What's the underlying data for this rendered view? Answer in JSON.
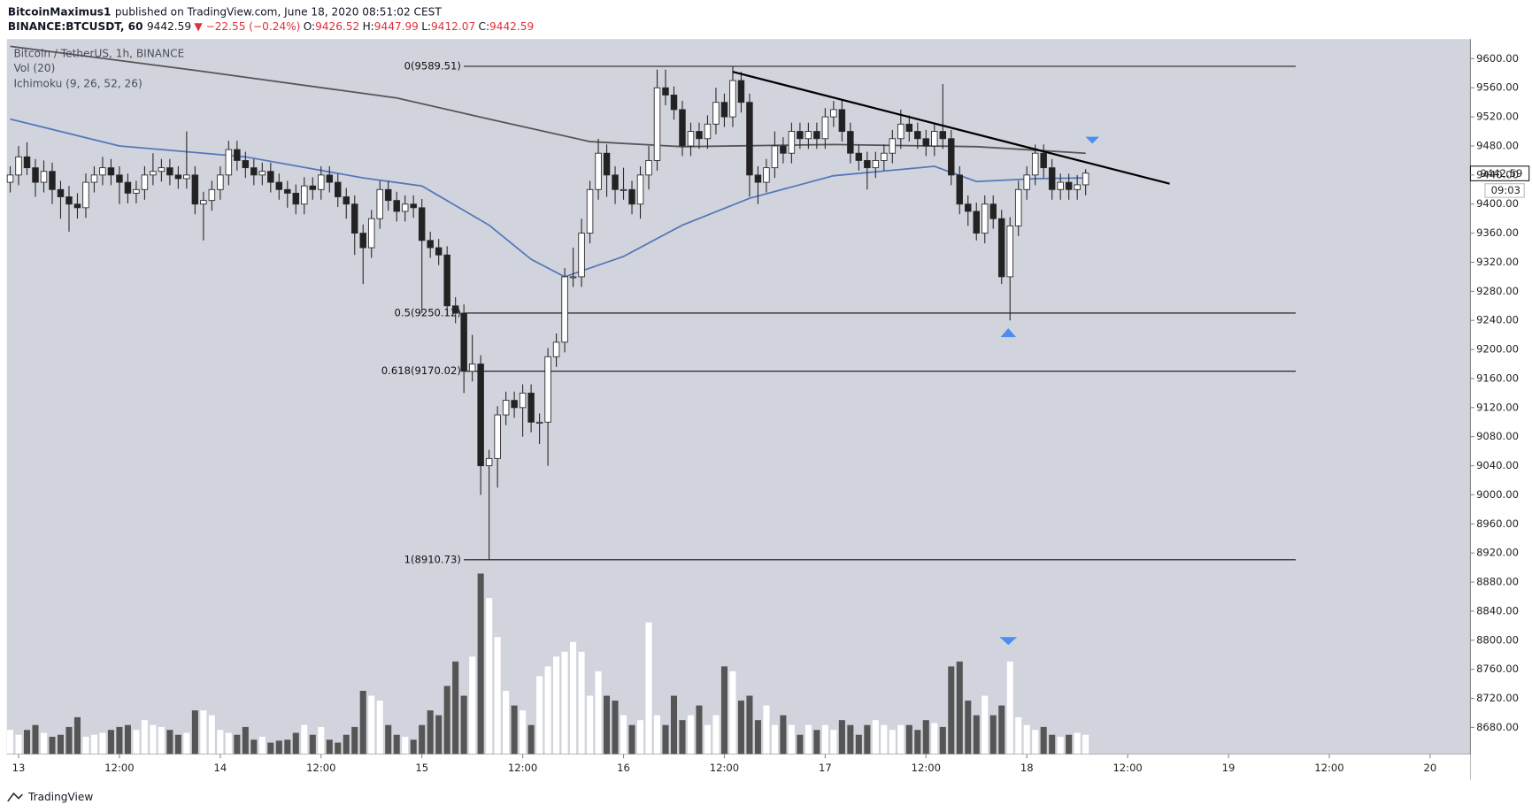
{
  "header": {
    "author": "BitcoinMaximus1",
    "published": "published on TradingView.com, June 18, 2020 08:51:02 CEST",
    "symbol": "BINANCE:BTCUSDT, 60",
    "change": "▼ −22.55 (−0.24%)",
    "o": "O:",
    "h": "H:",
    "l": "L:",
    "c": "C:"
  },
  "footer": "TradingView",
  "chart_data": {
    "type": "candlestick",
    "title": "Bitcoin / TetherUS, 1h, BINANCE",
    "indicators": [
      "Vol (20)",
      "Ichimoku (9, 26, 52, 26)"
    ],
    "countdown": "09:03",
    "background": "#d1d4dd",
    "up_color": "#ffffff",
    "down_color": "#222222",
    "wick_color": "#2a2a2a",
    "volume_up_color": "#ffffff",
    "volume_down_color": "#555555",
    "grid": false,
    "xlim": [
      -0.4,
      173.8
    ],
    "xticks": [
      {
        "value": 1,
        "label": "13"
      },
      {
        "value": 13,
        "label": "12:00"
      },
      {
        "value": 25,
        "label": "14"
      },
      {
        "value": 37,
        "label": "12:00"
      },
      {
        "value": 49,
        "label": "15"
      },
      {
        "value": 61,
        "label": "12:00"
      },
      {
        "value": 73,
        "label": "16"
      },
      {
        "value": 85,
        "label": "12:00"
      },
      {
        "value": 97,
        "label": "17"
      },
      {
        "value": 109,
        "label": "12:00"
      },
      {
        "value": 121,
        "label": "18"
      },
      {
        "value": 133,
        "label": "12:00"
      },
      {
        "value": 145,
        "label": "19"
      },
      {
        "value": 157,
        "label": "12:00"
      },
      {
        "value": 169,
        "label": "20"
      }
    ],
    "ylim": [
      8643,
      9627
    ],
    "yticks": [
      {
        "value": 8680,
        "label": "8680.00"
      },
      {
        "value": 8720,
        "label": "8720.00"
      },
      {
        "value": 8760,
        "label": "8760.00"
      },
      {
        "value": 8800,
        "label": "8800.00"
      },
      {
        "value": 8840,
        "label": "8840.00"
      },
      {
        "value": 8880,
        "label": "8880.00"
      },
      {
        "value": 8920,
        "label": "8920.00"
      },
      {
        "value": 8960,
        "label": "8960.00"
      },
      {
        "value": 9000,
        "label": "9000.00"
      },
      {
        "value": 9040,
        "label": "9040.00"
      },
      {
        "value": 9080,
        "label": "9080.00"
      },
      {
        "value": 9120,
        "label": "9120.00"
      },
      {
        "value": 9160,
        "label": "9160.00"
      },
      {
        "value": 9200,
        "label": "9200.00"
      },
      {
        "value": 9240,
        "label": "9240.00"
      },
      {
        "value": 9280,
        "label": "9280.00"
      },
      {
        "value": 9320,
        "label": "9320.00"
      },
      {
        "value": 9360,
        "label": "9360.00"
      },
      {
        "value": 9400,
        "label": "9400.00"
      },
      {
        "value": 9440,
        "label": "9440.00"
      },
      {
        "value": 9480,
        "label": "9480.00"
      },
      {
        "value": 9520,
        "label": "9520.00"
      },
      {
        "value": 9560,
        "label": "9560.00"
      },
      {
        "value": 9600,
        "label": "9600.00"
      }
    ],
    "open": [
      9430,
      9440,
      9465,
      9450,
      9430,
      9445,
      9420,
      9410,
      9400,
      9395,
      9430,
      9440,
      9450,
      9440,
      9430,
      9415,
      9420,
      9440,
      9445,
      9450,
      9440,
      9435,
      9440,
      9400,
      9405,
      9420,
      9440,
      9475,
      9460,
      9450,
      9440,
      9445,
      9430,
      9420,
      9415,
      9400,
      9425,
      9420,
      9440,
      9430,
      9410,
      9400,
      9360,
      9340,
      9380,
      9420,
      9405,
      9390,
      9400,
      9395,
      9350,
      9340,
      9330,
      9260,
      9250,
      9170,
      9180,
      9040,
      9050,
      9110,
      9130,
      9120,
      9140,
      9100,
      9100,
      9190,
      9210,
      9300,
      9300,
      9360,
      9420,
      9470,
      9440,
      9420,
      9420,
      9400,
      9440,
      9460,
      9560,
      9550,
      9530,
      9480,
      9500,
      9490,
      9510,
      9540,
      9520,
      9570,
      9540,
      9440,
      9430,
      9450,
      9480,
      9470,
      9500,
      9490,
      9500,
      9490,
      9520,
      9530,
      9500,
      9470,
      9460,
      9450,
      9460,
      9470,
      9490,
      9510,
      9500,
      9490,
      9480,
      9500,
      9490,
      9440,
      9400,
      9390,
      9360,
      9400,
      9380,
      9300,
      9370,
      9420,
      9440,
      9470,
      9450,
      9420,
      9430,
      9420,
      9426.52
    ],
    "high": [
      9452,
      9480,
      9485,
      9462,
      9460,
      9457,
      9432,
      9425,
      9415,
      9442,
      9452,
      9465,
      9462,
      9452,
      9442,
      9432,
      9452,
      9470,
      9462,
      9462,
      9452,
      9500,
      9452,
      9417,
      9432,
      9452,
      9487,
      9487,
      9472,
      9462,
      9457,
      9457,
      9442,
      9432,
      9427,
      9437,
      9437,
      9452,
      9452,
      9442,
      9422,
      9412,
      9372,
      9392,
      9432,
      9432,
      9417,
      9412,
      9412,
      9407,
      9362,
      9352,
      9342,
      9272,
      9262,
      9220,
      9192,
      9062,
      9122,
      9142,
      9142,
      9152,
      9152,
      9112,
      9202,
      9222,
      9312,
      9340,
      9380,
      9432,
      9490,
      9482,
      9452,
      9450,
      9432,
      9452,
      9480,
      9585,
      9585,
      9562,
      9542,
      9512,
      9512,
      9522,
      9560,
      9552,
      9589.51,
      9582,
      9552,
      9452,
      9462,
      9500,
      9492,
      9512,
      9512,
      9512,
      9512,
      9532,
      9542,
      9542,
      9512,
      9482,
      9472,
      9472,
      9482,
      9502,
      9530,
      9522,
      9512,
      9502,
      9512,
      9565,
      9502,
      9452,
      9412,
      9402,
      9412,
      9412,
      9392,
      9382,
      9432,
      9452,
      9482,
      9482,
      9462,
      9442,
      9442,
      9440,
      9447.99
    ],
    "low": [
      9416,
      9426,
      9440,
      9410,
      9416,
      9400,
      9380,
      9362,
      9380,
      9381,
      9416,
      9426,
      9426,
      9400,
      9401,
      9401,
      9406,
      9426,
      9431,
      9426,
      9421,
      9421,
      9386,
      9350,
      9391,
      9406,
      9426,
      9446,
      9436,
      9426,
      9426,
      9416,
      9406,
      9395,
      9386,
      9386,
      9406,
      9406,
      9416,
      9396,
      9380,
      9330,
      9290,
      9326,
      9366,
      9391,
      9376,
      9376,
      9381,
      9250,
      9326,
      9316,
      9246,
      9236,
      9140,
      9156,
      9000,
      8910.73,
      9010,
      9096,
      9106,
      9080,
      9086,
      9070,
      9040,
      9176,
      9196,
      9286,
      9286,
      9346,
      9406,
      9410,
      9400,
      9406,
      9386,
      9380,
      9420,
      9446,
      9536,
      9516,
      9466,
      9466,
      9476,
      9476,
      9496,
      9506,
      9506,
      9526,
      9410,
      9400,
      9416,
      9436,
      9456,
      9456,
      9476,
      9476,
      9476,
      9476,
      9506,
      9486,
      9456,
      9446,
      9420,
      9436,
      9446,
      9456,
      9476,
      9486,
      9476,
      9466,
      9466,
      9476,
      9426,
      9386,
      9370,
      9350,
      9346,
      9366,
      9290,
      9240,
      9356,
      9406,
      9426,
      9436,
      9406,
      9406,
      9406,
      9406,
      9412.07
    ],
    "close": [
      9440,
      9465,
      9450,
      9430,
      9445,
      9420,
      9410,
      9400,
      9395,
      9430,
      9440,
      9450,
      9440,
      9430,
      9415,
      9420,
      9440,
      9445,
      9450,
      9440,
      9435,
      9440,
      9400,
      9405,
      9420,
      9440,
      9475,
      9460,
      9450,
      9440,
      9445,
      9430,
      9420,
      9415,
      9400,
      9425,
      9420,
      9440,
      9430,
      9410,
      9400,
      9360,
      9340,
      9380,
      9420,
      9405,
      9390,
      9400,
      9395,
      9350,
      9340,
      9330,
      9260,
      9250,
      9170,
      9180,
      9040,
      9050,
      9110,
      9130,
      9120,
      9140,
      9100,
      9100,
      9190,
      9210,
      9300,
      9300,
      9360,
      9420,
      9470,
      9440,
      9420,
      9420,
      9400,
      9440,
      9460,
      9560,
      9550,
      9530,
      9480,
      9500,
      9490,
      9510,
      9540,
      9520,
      9570,
      9540,
      9440,
      9430,
      9450,
      9480,
      9470,
      9500,
      9490,
      9500,
      9490,
      9520,
      9530,
      9500,
      9470,
      9460,
      9450,
      9460,
      9470,
      9490,
      9510,
      9500,
      9490,
      9480,
      9500,
      9490,
      9440,
      9400,
      9390,
      9360,
      9400,
      9380,
      9300,
      9370,
      9420,
      9440,
      9470,
      9450,
      9420,
      9430,
      9420,
      9426.52,
      9442.59
    ],
    "volume": [
      25,
      20,
      25,
      30,
      22,
      18,
      20,
      28,
      38,
      18,
      20,
      22,
      25,
      28,
      30,
      25,
      35,
      30,
      28,
      25,
      20,
      22,
      45,
      45,
      40,
      25,
      22,
      20,
      28,
      15,
      18,
      12,
      14,
      15,
      22,
      30,
      20,
      28,
      15,
      12,
      20,
      28,
      65,
      60,
      55,
      30,
      20,
      18,
      15,
      30,
      45,
      40,
      70,
      95,
      60,
      100,
      185,
      160,
      120,
      65,
      50,
      45,
      30,
      80,
      90,
      100,
      105,
      115,
      105,
      60,
      85,
      60,
      55,
      40,
      30,
      35,
      135,
      40,
      30,
      60,
      35,
      40,
      50,
      30,
      40,
      90,
      85,
      55,
      60,
      35,
      50,
      30,
      40,
      30,
      20,
      30,
      25,
      30,
      25,
      35,
      30,
      20,
      30,
      35,
      30,
      25,
      30,
      30,
      25,
      35,
      32,
      28,
      90,
      95,
      55,
      40,
      60,
      40,
      50,
      95,
      38,
      30,
      25,
      28,
      20,
      18,
      20,
      22,
      20
    ],
    "lines": [
      {
        "color": "#5577bb",
        "x": [
          0,
          13,
          28,
          42,
          49,
          57,
          62,
          66,
          73,
          80,
          88,
          98,
          110,
          115,
          122,
          128
        ],
        "values": [
          9517,
          9480,
          9465,
          9436,
          9425,
          9371,
          9324,
          9300,
          9328,
          9371,
          9408,
          9439,
          9452,
          9431,
          9435,
          9436
        ]
      },
      {
        "color": "#555555",
        "x": [
          0,
          22,
          46,
          57,
          69,
          80,
          98,
          115,
          128
        ],
        "values": [
          9617,
          9584,
          9546,
          9517,
          9486,
          9479,
          9482,
          9479,
          9470
        ]
      }
    ],
    "fib_range": [
      54,
      153
    ],
    "fib_levels": [
      {
        "label": "0(9589.51)",
        "value": 9589.51
      },
      {
        "label": "0.5(9250.12)",
        "value": 9250.12
      },
      {
        "label": "0.618(9170.02)",
        "value": 9170.02
      },
      {
        "label": "1(8910.73)",
        "value": 8910.73
      }
    ],
    "trendline": {
      "x": [
        86,
        138
      ],
      "values": [
        9582,
        9428
      ],
      "color": "#000000"
    }
  }
}
